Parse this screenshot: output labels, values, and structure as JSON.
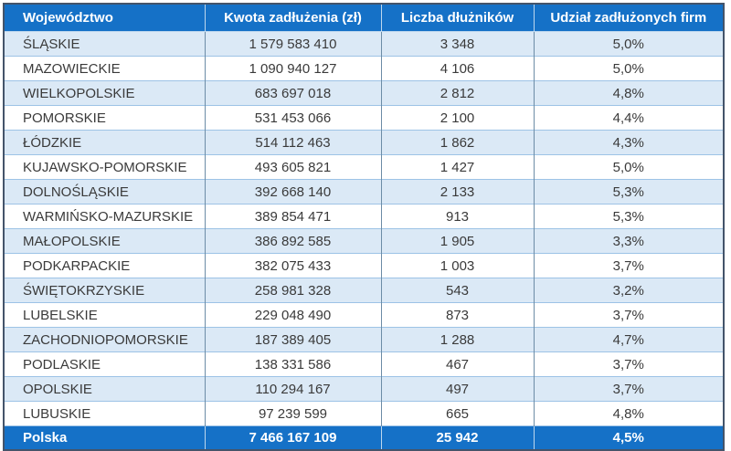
{
  "chart_data": {
    "type": "table",
    "columns": [
      "Województwo",
      "Kwota zadłużenia (zł)",
      "Liczba dłużników",
      "Udział zadłużonych firm"
    ],
    "rows": [
      [
        "ŚLĄSKIE",
        "1 579 583 410",
        "3 348",
        "5,0%"
      ],
      [
        "MAZOWIECKIE",
        "1 090 940 127",
        "4 106",
        "5,0%"
      ],
      [
        "WIELKOPOLSKIE",
        "683 697 018",
        "2 812",
        "4,8%"
      ],
      [
        "POMORSKIE",
        "531 453 066",
        "2 100",
        "4,4%"
      ],
      [
        "ŁÓDZKIE",
        "514 112 463",
        "1 862",
        "4,3%"
      ],
      [
        "KUJAWSKO-POMORSKIE",
        "493 605 821",
        "1 427",
        "5,0%"
      ],
      [
        "DOLNOŚLĄSKIE",
        "392 668 140",
        "2 133",
        "5,3%"
      ],
      [
        "WARMIŃSKO-MAZURSKIE",
        "389 854 471",
        "913",
        "5,3%"
      ],
      [
        "MAŁOPOLSKIE",
        "386 892 585",
        "1 905",
        "3,3%"
      ],
      [
        "PODKARPACKIE",
        "382 075 433",
        "1 003",
        "3,7%"
      ],
      [
        "ŚWIĘTOKRZYSKIE",
        "258 981 328",
        "543",
        "3,2%"
      ],
      [
        "LUBELSKIE",
        "229 048 490",
        "873",
        "3,7%"
      ],
      [
        "ZACHODNIOPOMORSKIE",
        "187 389 405",
        "1 288",
        "4,7%"
      ],
      [
        "PODLASKIE",
        "138 331 586",
        "467",
        "3,7%"
      ],
      [
        "OPOLSKIE",
        "110 294 167",
        "497",
        "3,7%"
      ],
      [
        "LUBUSKIE",
        "97 239 599",
        "665",
        "4,8%"
      ]
    ],
    "footer": [
      "Polska",
      "7 466 167 109",
      "25 942",
      "4,5%"
    ]
  },
  "colors": {
    "header_bg": "#1571C7",
    "header_text": "#FFFFFF",
    "body_text": "#3A3A3A",
    "row_bg": "#FFFFFF",
    "row_alt_bg": "#DBE9F6",
    "row_line": "#9DC3E6",
    "col_line": "#6C8CA6",
    "light_line": "#BDD7EE",
    "outer_border": "#44546A"
  }
}
